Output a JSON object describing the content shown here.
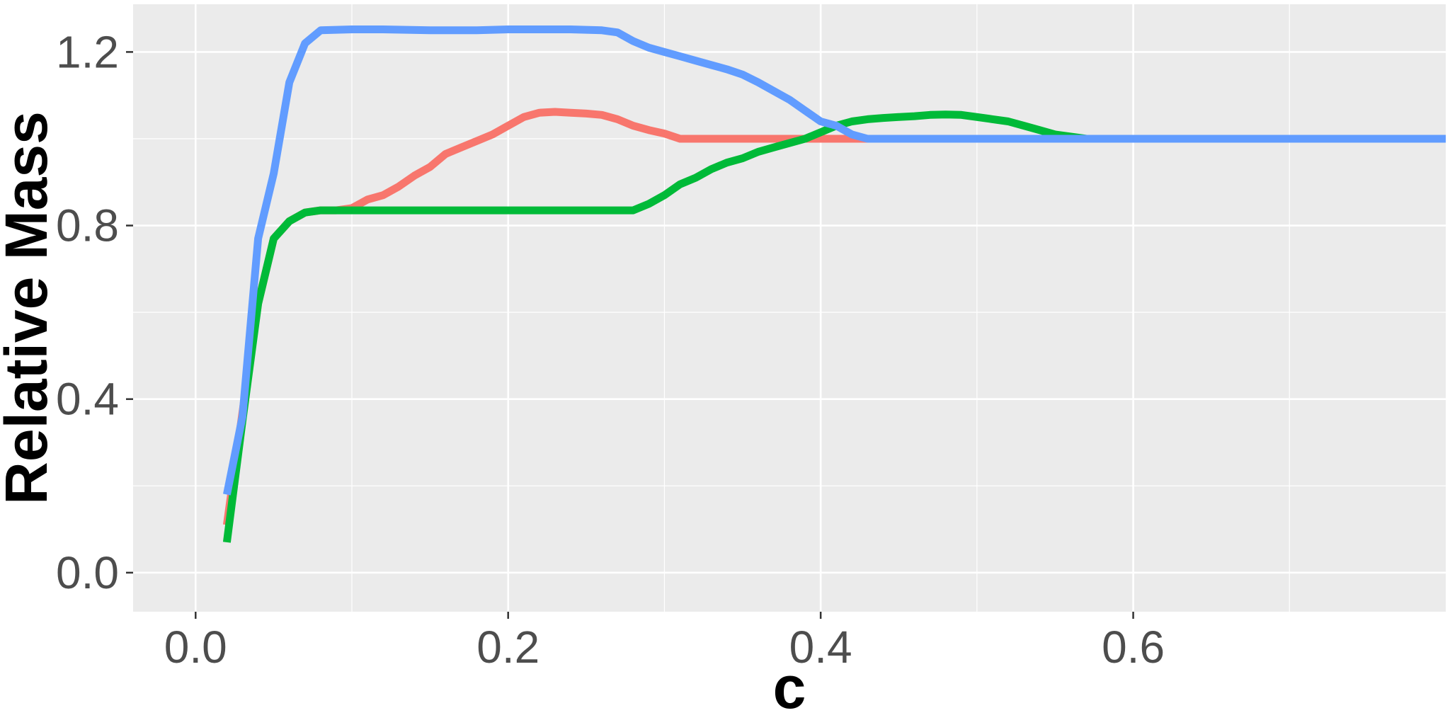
{
  "chart_data": {
    "type": "line",
    "xlabel": "c",
    "ylabel": "Relative Mass",
    "xlim": [
      -0.04,
      0.8
    ],
    "ylim": [
      -0.09,
      1.31
    ],
    "x_ticks": [
      "0.0",
      "0.2",
      "0.4",
      "0.6"
    ],
    "x_tick_values": [
      0.0,
      0.2,
      0.4,
      0.6
    ],
    "y_ticks": [
      "0.0",
      "0.4",
      "0.8",
      "1.2"
    ],
    "y_tick_values": [
      0.0,
      0.4,
      0.8,
      1.2
    ],
    "grid": true,
    "legend": "none",
    "background": "#ebebeb",
    "gridline_color": "#ffffff",
    "series": [
      {
        "color": "#f8766d",
        "points": [
          [
            0.02,
            0.11
          ],
          [
            0.03,
            0.37
          ],
          [
            0.04,
            0.62
          ],
          [
            0.05,
            0.77
          ],
          [
            0.06,
            0.81
          ],
          [
            0.07,
            0.83
          ],
          [
            0.08,
            0.835
          ],
          [
            0.09,
            0.835
          ],
          [
            0.1,
            0.84
          ],
          [
            0.11,
            0.86
          ],
          [
            0.12,
            0.87
          ],
          [
            0.13,
            0.89
          ],
          [
            0.14,
            0.915
          ],
          [
            0.15,
            0.935
          ],
          [
            0.16,
            0.965
          ],
          [
            0.17,
            0.98
          ],
          [
            0.18,
            0.995
          ],
          [
            0.19,
            1.01
          ],
          [
            0.2,
            1.03
          ],
          [
            0.21,
            1.05
          ],
          [
            0.22,
            1.06
          ],
          [
            0.23,
            1.062
          ],
          [
            0.24,
            1.06
          ],
          [
            0.25,
            1.058
          ],
          [
            0.26,
            1.055
          ],
          [
            0.27,
            1.045
          ],
          [
            0.28,
            1.03
          ],
          [
            0.29,
            1.02
          ],
          [
            0.3,
            1.012
          ],
          [
            0.31,
            1.0
          ],
          [
            0.35,
            1.0
          ],
          [
            0.4,
            1.0
          ],
          [
            0.43,
            1.0
          ],
          [
            0.5,
            1.0
          ],
          [
            0.6,
            1.0
          ],
          [
            0.7,
            1.0
          ],
          [
            0.8,
            1.0
          ]
        ]
      },
      {
        "color": "#00ba38",
        "points": [
          [
            0.02,
            0.07
          ],
          [
            0.03,
            0.35
          ],
          [
            0.04,
            0.62
          ],
          [
            0.05,
            0.77
          ],
          [
            0.06,
            0.81
          ],
          [
            0.07,
            0.83
          ],
          [
            0.08,
            0.835
          ],
          [
            0.1,
            0.835
          ],
          [
            0.15,
            0.835
          ],
          [
            0.2,
            0.835
          ],
          [
            0.25,
            0.835
          ],
          [
            0.28,
            0.835
          ],
          [
            0.29,
            0.85
          ],
          [
            0.3,
            0.87
          ],
          [
            0.31,
            0.895
          ],
          [
            0.32,
            0.91
          ],
          [
            0.33,
            0.93
          ],
          [
            0.34,
            0.945
          ],
          [
            0.35,
            0.955
          ],
          [
            0.36,
            0.97
          ],
          [
            0.37,
            0.98
          ],
          [
            0.38,
            0.99
          ],
          [
            0.39,
            1.0
          ],
          [
            0.4,
            1.015
          ],
          [
            0.41,
            1.03
          ],
          [
            0.42,
            1.04
          ],
          [
            0.43,
            1.045
          ],
          [
            0.44,
            1.048
          ],
          [
            0.45,
            1.05
          ],
          [
            0.46,
            1.052
          ],
          [
            0.47,
            1.055
          ],
          [
            0.48,
            1.056
          ],
          [
            0.49,
            1.055
          ],
          [
            0.5,
            1.05
          ],
          [
            0.51,
            1.045
          ],
          [
            0.52,
            1.04
          ],
          [
            0.53,
            1.03
          ],
          [
            0.54,
            1.02
          ],
          [
            0.55,
            1.01
          ],
          [
            0.56,
            1.005
          ],
          [
            0.57,
            1.0
          ],
          [
            0.6,
            1.0
          ],
          [
            0.7,
            1.0
          ],
          [
            0.8,
            1.0
          ]
        ]
      },
      {
        "color": "#619cff",
        "points": [
          [
            0.02,
            0.18
          ],
          [
            0.03,
            0.36
          ],
          [
            0.04,
            0.77
          ],
          [
            0.05,
            0.92
          ],
          [
            0.06,
            1.13
          ],
          [
            0.07,
            1.22
          ],
          [
            0.08,
            1.25
          ],
          [
            0.1,
            1.252
          ],
          [
            0.12,
            1.252
          ],
          [
            0.15,
            1.25
          ],
          [
            0.18,
            1.25
          ],
          [
            0.2,
            1.252
          ],
          [
            0.22,
            1.252
          ],
          [
            0.24,
            1.252
          ],
          [
            0.26,
            1.25
          ],
          [
            0.27,
            1.245
          ],
          [
            0.28,
            1.225
          ],
          [
            0.29,
            1.21
          ],
          [
            0.3,
            1.2
          ],
          [
            0.31,
            1.19
          ],
          [
            0.32,
            1.18
          ],
          [
            0.33,
            1.17
          ],
          [
            0.34,
            1.16
          ],
          [
            0.35,
            1.148
          ],
          [
            0.36,
            1.13
          ],
          [
            0.37,
            1.11
          ],
          [
            0.38,
            1.09
          ],
          [
            0.39,
            1.065
          ],
          [
            0.4,
            1.04
          ],
          [
            0.41,
            1.03
          ],
          [
            0.42,
            1.01
          ],
          [
            0.43,
            1.0
          ],
          [
            0.5,
            1.0
          ],
          [
            0.6,
            1.0
          ],
          [
            0.7,
            1.0
          ],
          [
            0.8,
            1.0
          ]
        ]
      }
    ]
  }
}
